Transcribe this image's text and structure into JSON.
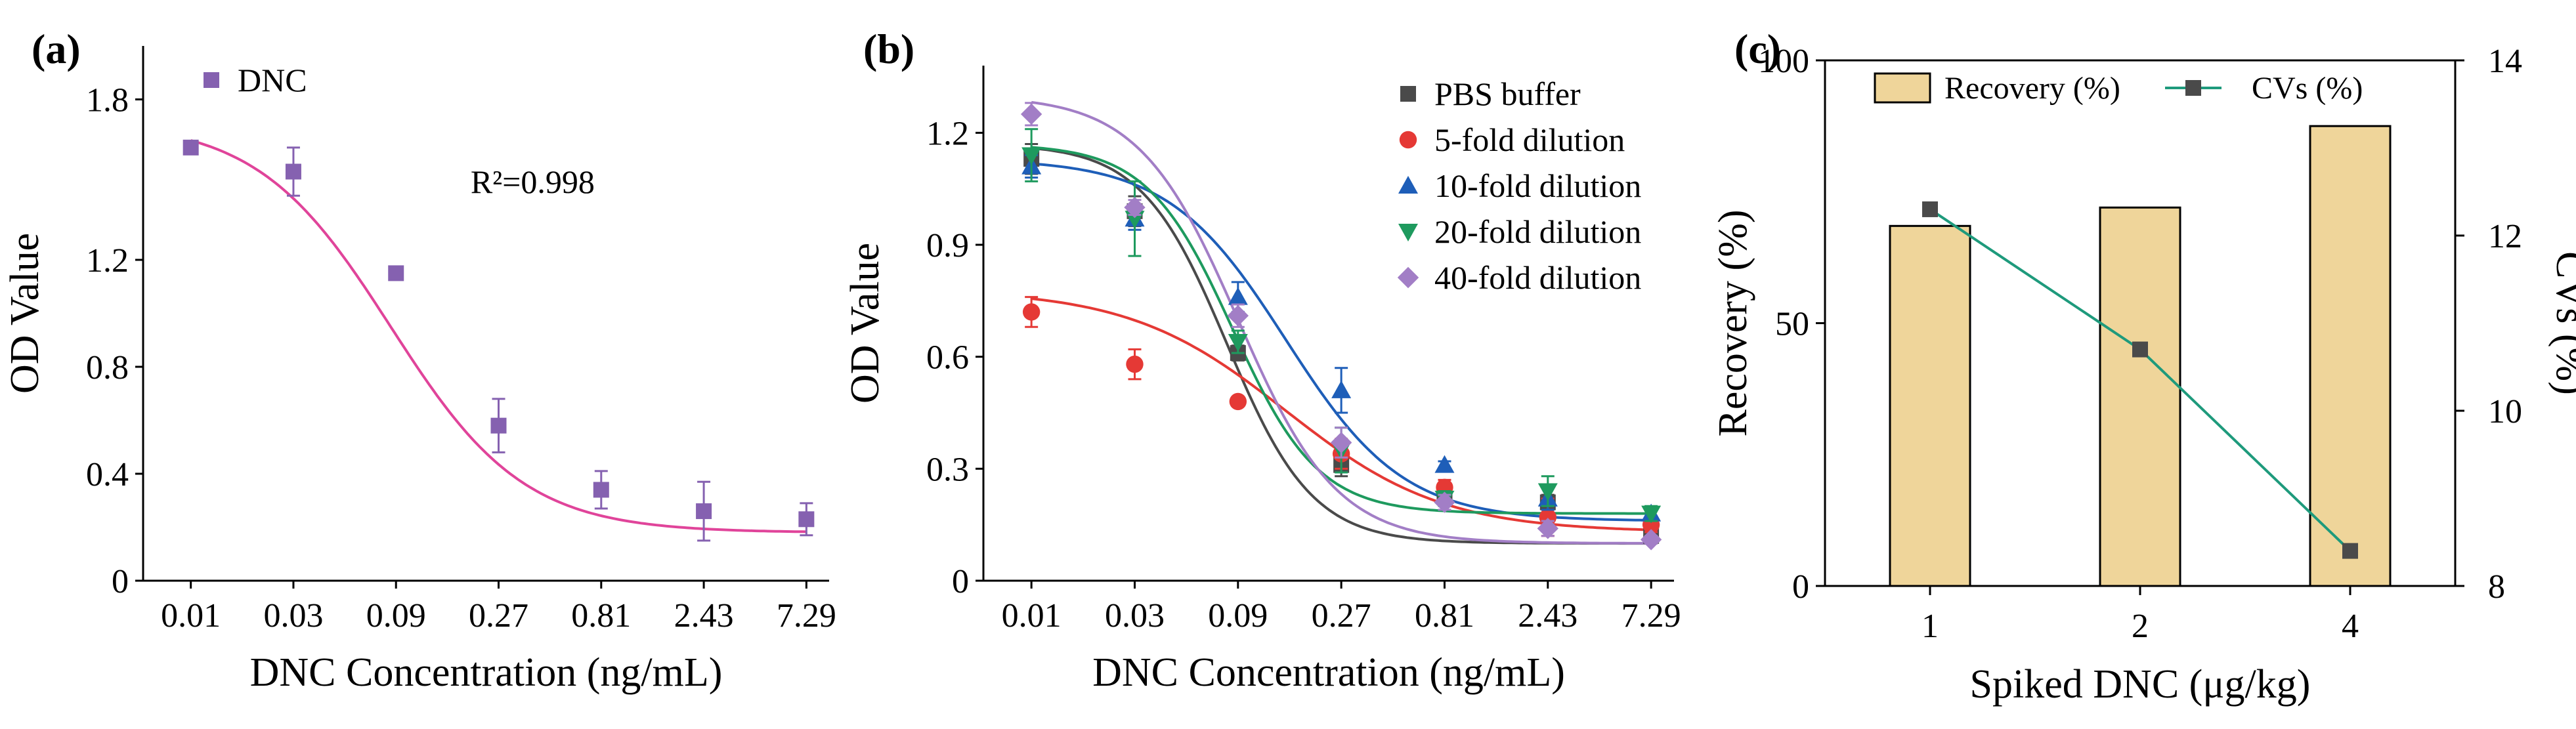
{
  "figure": {
    "panel_labels": [
      "(a)",
      "(b)",
      "(c)"
    ]
  },
  "chart_data": [
    {
      "type": "scatter",
      "panel": "(a)",
      "title": "",
      "xlabel": "DNC Concentration (ng/mL)",
      "ylabel": "OD Value",
      "x_scale": "log",
      "x_ticks": [
        "0.01",
        "0.03",
        "0.09",
        "0.27",
        "0.81",
        "2.43",
        "7.29"
      ],
      "x_tick_values": [
        0.01,
        0.03,
        0.09,
        0.27,
        0.81,
        2.43,
        7.29
      ],
      "x_range": [
        0.006,
        9.3
      ],
      "y_ticks": [
        "0",
        "0.4",
        "0.8",
        "1.2",
        "1.8"
      ],
      "y_tick_values": [
        0.0,
        0.4,
        0.8,
        1.2,
        1.8
      ],
      "ylim": [
        0,
        2.0
      ],
      "annotation": "R²=0.998",
      "legend": [
        "DNC"
      ],
      "series": [
        {
          "name": "DNC",
          "color": "#8561b0",
          "line_color": "#e0449a",
          "marker": "square",
          "x": [
            0.01,
            0.03,
            0.09,
            0.27,
            0.81,
            2.43,
            7.29
          ],
          "y": [
            1.62,
            1.53,
            1.15,
            0.58,
            0.34,
            0.26,
            0.23
          ],
          "err": [
            0.0,
            0.09,
            0.0,
            0.1,
            0.07,
            0.11,
            0.06
          ],
          "fit": {
            "A1": 1.72,
            "A2": 0.18,
            "x0": 0.085,
            "p": 1.4
          }
        }
      ]
    },
    {
      "type": "scatter",
      "panel": "(b)",
      "title": "",
      "xlabel": "DNC Concentration (ng/mL)",
      "ylabel": "OD Value",
      "x_scale": "log",
      "x_ticks": [
        "0.01",
        "0.03",
        "0.09",
        "0.27",
        "0.81",
        "2.43",
        "7.29"
      ],
      "x_tick_values": [
        0.01,
        0.03,
        0.09,
        0.27,
        0.81,
        2.43,
        7.29
      ],
      "x_range": [
        0.006,
        9.3
      ],
      "y_ticks": [
        "0",
        "0.3",
        "0.6",
        "0.9",
        "1.2"
      ],
      "y_tick_values": [
        0.0,
        0.3,
        0.6,
        0.9,
        1.2
      ],
      "ylim": [
        0,
        1.38
      ],
      "series": [
        {
          "name": "PBS buffer",
          "color": "#4a4a4a",
          "marker": "square",
          "x": [
            0.01,
            0.03,
            0.09,
            0.27,
            0.81,
            2.43,
            7.29
          ],
          "y": [
            1.13,
            0.99,
            0.61,
            0.31,
            0.23,
            0.21,
            0.12
          ],
          "err": [
            0.04,
            0.04,
            0.02,
            0.03,
            0.02,
            0.02,
            0.02
          ],
          "fit": {
            "A1": 1.17,
            "A2": 0.1,
            "x0": 0.08,
            "p": 2.2
          }
        },
        {
          "name": "5-fold dilution",
          "color": "#e53935",
          "marker": "circle",
          "x": [
            0.01,
            0.03,
            0.09,
            0.27,
            0.81,
            2.43,
            7.29
          ],
          "y": [
            0.72,
            0.58,
            0.48,
            0.34,
            0.25,
            0.17,
            0.15
          ],
          "err": [
            0.04,
            0.04,
            0.0,
            0.04,
            0.02,
            0.05,
            0.02
          ],
          "fit": {
            "A1": 0.78,
            "A2": 0.13,
            "x0": 0.15,
            "p": 1.2
          }
        },
        {
          "name": "10-fold dilution",
          "color": "#1e5eb8",
          "marker": "triangle-up",
          "x": [
            0.01,
            0.03,
            0.09,
            0.27,
            0.81,
            2.43,
            7.29
          ],
          "y": [
            1.11,
            0.97,
            0.76,
            0.51,
            0.31,
            0.22,
            0.18
          ],
          "err": [
            0.03,
            0.03,
            0.04,
            0.06,
            0.01,
            0.03,
            0.01
          ],
          "fit": {
            "A1": 1.13,
            "A2": 0.16,
            "x0": 0.15,
            "p": 1.6
          }
        },
        {
          "name": "20-fold dilution",
          "color": "#1e9a5e",
          "marker": "triangle-down",
          "x": [
            0.01,
            0.03,
            0.09,
            0.27,
            0.81,
            2.43,
            7.29
          ],
          "y": [
            1.14,
            0.97,
            0.64,
            0.35,
            0.22,
            0.24,
            0.18
          ],
          "err": [
            0.07,
            0.1,
            0.03,
            0.06,
            0.02,
            0.04,
            0.02
          ],
          "fit": {
            "A1": 1.17,
            "A2": 0.18,
            "x0": 0.085,
            "p": 2.2
          }
        },
        {
          "name": "40-fold dilution",
          "color": "#a27ec6",
          "marker": "diamond",
          "x": [
            0.01,
            0.03,
            0.09,
            0.27,
            0.81,
            2.43,
            7.29
          ],
          "y": [
            1.25,
            1.0,
            0.71,
            0.37,
            0.21,
            0.14,
            0.11
          ],
          "err": [
            0.03,
            0.02,
            0.03,
            0.04,
            0.02,
            0.02,
            0.01
          ],
          "fit": {
            "A1": 1.3,
            "A2": 0.1,
            "x0": 0.09,
            "p": 1.9
          }
        }
      ]
    },
    {
      "type": "bar",
      "panel": "(c)",
      "title": "",
      "xlabel": "Spiked DNC (μg/kg)",
      "ylabel": "Recovery (%)",
      "y2label": "CVs (%)",
      "categories": [
        "1",
        "2",
        "4"
      ],
      "y_ticks": [
        "0",
        "50",
        "100"
      ],
      "y_tick_values": [
        0,
        50,
        100
      ],
      "ylim": [
        0,
        100
      ],
      "y2_ticks": [
        "8",
        "10",
        "12",
        "14"
      ],
      "y2_tick_values": [
        8,
        10,
        12,
        14
      ],
      "y2lim": [
        8,
        14
      ],
      "series": [
        {
          "name": "Recovery (%)",
          "axis": "left",
          "kind": "bar",
          "color": "#efd59a",
          "values": [
            68.5,
            72.0,
            87.5
          ]
        },
        {
          "name": "CVs (%)",
          "axis": "right",
          "kind": "line",
          "color": "#1e9a7c",
          "marker_color": "#4a4a4a",
          "values": [
            12.3,
            10.7,
            8.4
          ]
        }
      ],
      "legend": [
        "Recovery (%)",
        "CVs (%)"
      ]
    }
  ]
}
